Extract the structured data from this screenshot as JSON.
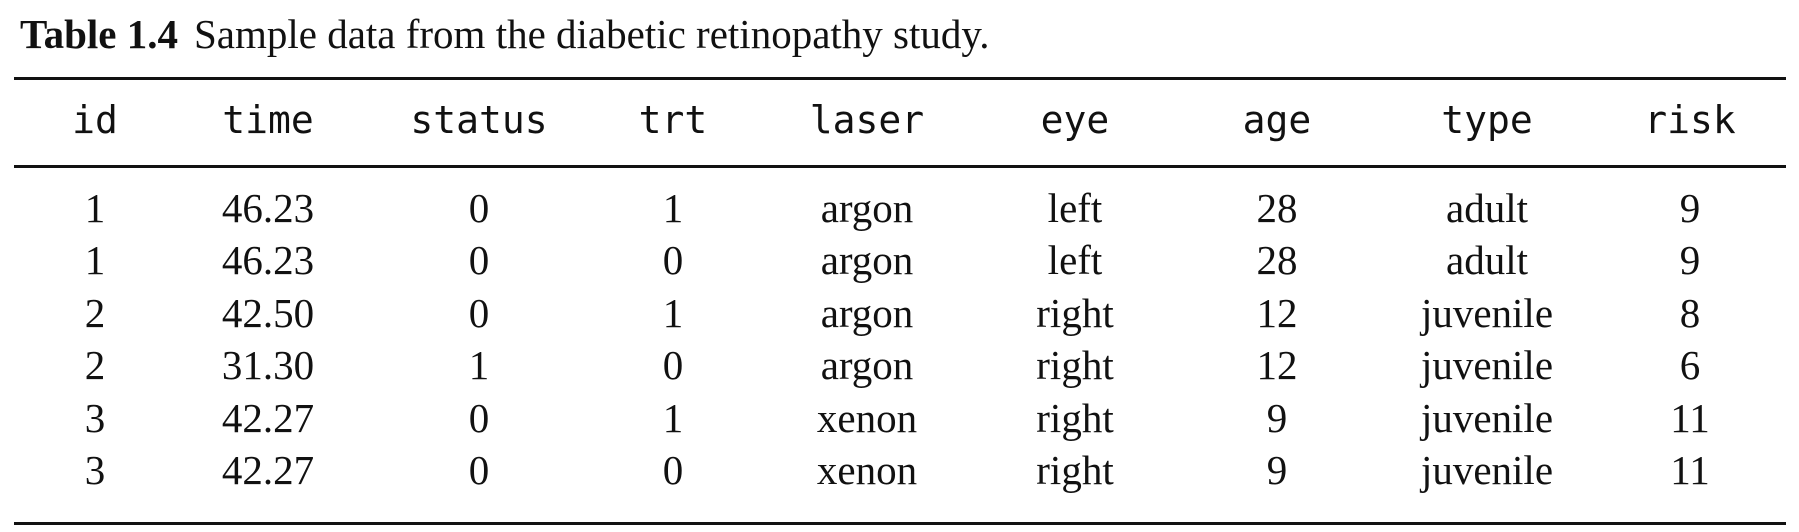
{
  "caption": {
    "label": "Table 1.4",
    "text": "Sample data from the diabetic retinopathy study."
  },
  "table": {
    "headers": [
      "id",
      "time",
      "status",
      "trt",
      "laser",
      "eye",
      "age",
      "type",
      "risk"
    ],
    "rows": [
      [
        "1",
        "46.23",
        "0",
        "1",
        "argon",
        "left",
        "28",
        "adult",
        "9"
      ],
      [
        "1",
        "46.23",
        "0",
        "0",
        "argon",
        "left",
        "28",
        "adult",
        "9"
      ],
      [
        "2",
        "42.50",
        "0",
        "1",
        "argon",
        "right",
        "12",
        "juvenile",
        "8"
      ],
      [
        "2",
        "31.30",
        "1",
        "0",
        "argon",
        "right",
        "12",
        "juvenile",
        "6"
      ],
      [
        "3",
        "42.27",
        "0",
        "1",
        "xenon",
        "right",
        "9",
        "juvenile",
        "11"
      ],
      [
        "3",
        "42.27",
        "0",
        "0",
        "xenon",
        "right",
        "9",
        "juvenile",
        "11"
      ]
    ]
  }
}
